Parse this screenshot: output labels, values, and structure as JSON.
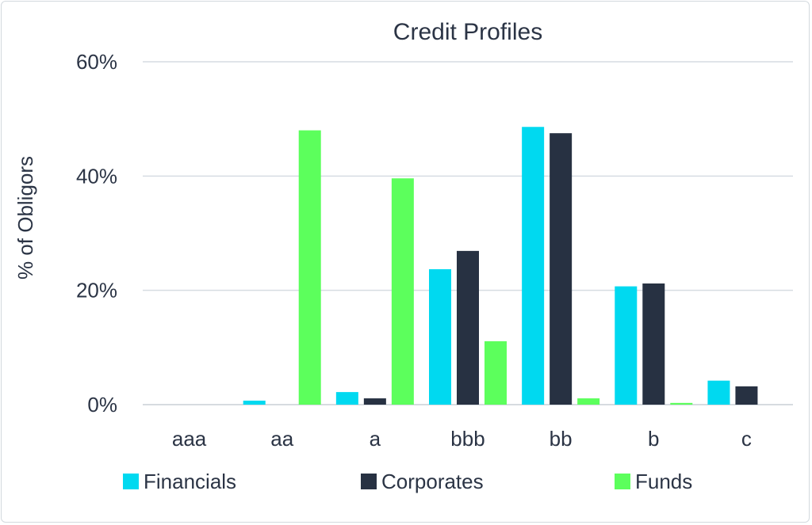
{
  "chart_data": {
    "type": "bar",
    "title": "Credit Profiles",
    "xlabel": "",
    "ylabel": "% of Obligors",
    "categories": [
      "aaa",
      "aa",
      "a",
      "bbb",
      "bb",
      "b",
      "c"
    ],
    "ylim": [
      0,
      60
    ],
    "yticks": [
      0,
      20,
      40,
      60
    ],
    "ytick_labels": [
      "0%",
      "20%",
      "40%",
      "60%"
    ],
    "grid": true,
    "legend_position": "bottom",
    "series": [
      {
        "name": "Financials",
        "color": "#00d9f0",
        "values": [
          0,
          0.7,
          2.2,
          23.7,
          48.6,
          20.7,
          4.2
        ]
      },
      {
        "name": "Corporates",
        "color": "#273142",
        "values": [
          0,
          0,
          1.1,
          26.9,
          47.5,
          21.2,
          3.2
        ]
      },
      {
        "name": "Funds",
        "color": "#5cff5c",
        "values": [
          0,
          48,
          39.6,
          11.1,
          1.1,
          0.3,
          0
        ]
      }
    ]
  }
}
